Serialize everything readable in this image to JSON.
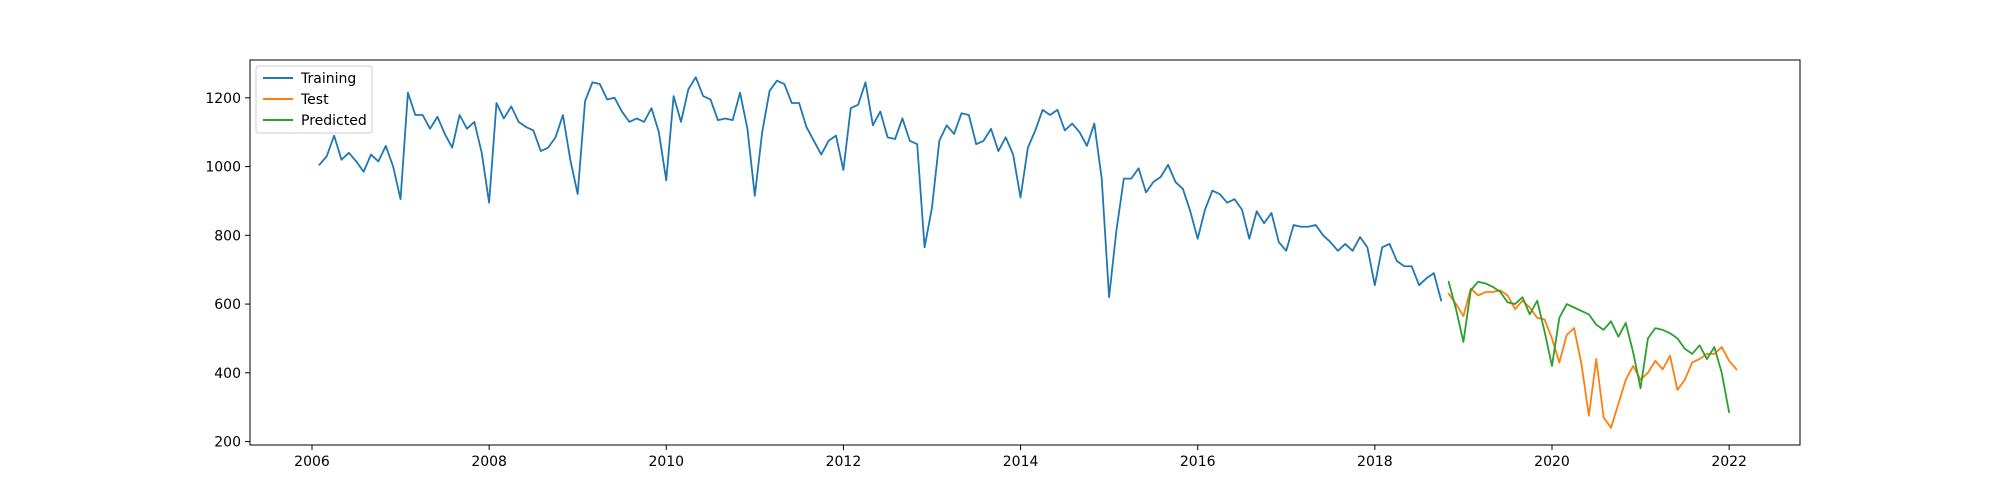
{
  "chart_data": {
    "type": "line",
    "title": "",
    "xlabel": "",
    "ylabel": "",
    "xlim": [
      2005.3,
      2022.8
    ],
    "ylim": [
      190,
      1310
    ],
    "x_ticks": [
      2006,
      2008,
      2010,
      2012,
      2014,
      2016,
      2018,
      2020,
      2022
    ],
    "y_ticks": [
      200,
      400,
      600,
      800,
      1000,
      1200
    ],
    "x_tick_labels": [
      "2006",
      "2008",
      "2010",
      "2012",
      "2014",
      "2016",
      "2018",
      "2020",
      "2022"
    ],
    "y_tick_labels": [
      "200",
      "400",
      "600",
      "800",
      "1000",
      "1200"
    ],
    "grid": false,
    "legend_position": "top-left",
    "series": [
      {
        "name": "Training",
        "color": "#1f77b4",
        "x_start": 2006.083,
        "x_step": 0.08333,
        "values": [
          1005,
          1030,
          1090,
          1020,
          1040,
          1015,
          985,
          1035,
          1015,
          1060,
          1000,
          905,
          1215,
          1150,
          1150,
          1110,
          1145,
          1095,
          1055,
          1150,
          1110,
          1130,
          1040,
          895,
          1185,
          1140,
          1175,
          1130,
          1115,
          1105,
          1045,
          1055,
          1085,
          1150,
          1020,
          920,
          1190,
          1245,
          1240,
          1195,
          1200,
          1160,
          1130,
          1140,
          1130,
          1170,
          1100,
          960,
          1205,
          1130,
          1225,
          1260,
          1205,
          1195,
          1135,
          1140,
          1135,
          1215,
          1110,
          915,
          1100,
          1220,
          1250,
          1240,
          1185,
          1185,
          1115,
          1075,
          1035,
          1075,
          1090,
          990,
          1170,
          1180,
          1245,
          1120,
          1160,
          1085,
          1080,
          1140,
          1075,
          1065,
          765,
          880,
          1075,
          1120,
          1095,
          1155,
          1150,
          1065,
          1075,
          1110,
          1045,
          1085,
          1035,
          910,
          1055,
          1105,
          1165,
          1150,
          1165,
          1105,
          1125,
          1100,
          1060,
          1125,
          965,
          620,
          815,
          965,
          965,
          995,
          925,
          955,
          970,
          1005,
          955,
          935,
          870,
          790,
          875,
          930,
          920,
          895,
          905,
          875,
          790,
          870,
          835,
          865,
          780,
          755,
          830,
          825,
          825,
          830,
          800,
          780,
          755,
          775,
          755,
          795,
          765,
          655,
          765,
          775,
          725,
          710,
          710,
          655,
          675,
          690,
          610
        ]
      },
      {
        "name": "Test",
        "color": "#ff7f0e",
        "x_start": 2018.833,
        "x_step": 0.08333,
        "values": [
          630,
          600,
          565,
          645,
          625,
          635,
          635,
          640,
          625,
          585,
          610,
          590,
          560,
          555,
          500,
          430,
          510,
          530,
          425,
          275,
          440,
          270,
          240,
          310,
          380,
          420,
          380,
          400,
          435,
          410,
          450,
          350,
          380,
          430,
          440,
          455,
          455,
          475,
          435,
          410
        ]
      },
      {
        "name": "Predicted",
        "color": "#2ca02c",
        "x_start": 2018.833,
        "x_step": 0.08333,
        "values": [
          665,
          585,
          490,
          640,
          665,
          660,
          650,
          635,
          605,
          600,
          620,
          570,
          610,
          520,
          420,
          560,
          600,
          590,
          580,
          570,
          540,
          525,
          550,
          505,
          545,
          460,
          355,
          500,
          530,
          525,
          515,
          500,
          470,
          455,
          480,
          440,
          475,
          400,
          285
        ]
      }
    ]
  }
}
